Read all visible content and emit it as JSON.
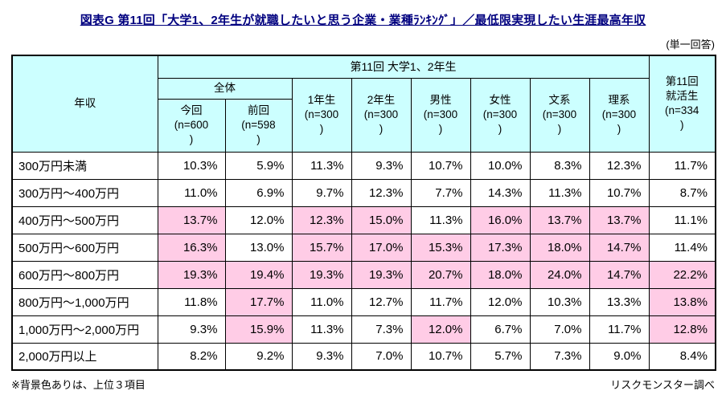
{
  "colors": {
    "header_bg": "#ccffff",
    "highlight_bg": "#ffcce6",
    "title_color": "#00007f",
    "border": "#000000"
  },
  "page": {
    "title": "図表G 第11回「大学1、2年生が就職したいと思う企業・業種ﾗﾝｷﾝｸﾞ」／最低限実現したい生涯最高年収",
    "answer_note": "(単一回答)",
    "footnote": "※背景色ありは、上位３項目",
    "source": "リスクモンスター調べ"
  },
  "header": {
    "nenshu": "年収",
    "group": "第11回  大学1、2年生",
    "zentai": "全体",
    "konkai": "今回\n(n=600\n)",
    "zenkai": "前回\n(n=598\n)",
    "y1": "1年生\n(n=300\n)",
    "y2": "2年生\n(n=300\n)",
    "male": "男性\n(n=300\n)",
    "female": "女性\n(n=300\n)",
    "bunkei": "文系\n(n=300\n)",
    "rikei": "理系\n(n=300\n)",
    "shukatsu": "第11回\n就活生\n(n=334\n)"
  },
  "chart_data": {
    "type": "table",
    "title": "第11回「大学1、2年生が就職したいと思う企業・業種ランキング」／最低限実現したい生涯最高年収",
    "unit": "%",
    "row_header": "年収",
    "column_group": "第11回 大学1、2年生",
    "columns": [
      "今回(n=600)",
      "前回(n=598)",
      "1年生(n=300)",
      "2年生(n=300)",
      "男性(n=300)",
      "女性(n=300)",
      "文系(n=300)",
      "理系(n=300)",
      "第11回就活生(n=334)"
    ],
    "highlight_rule": "背景色ありは、上位3項目",
    "rows": [
      {
        "label": "300万円未満",
        "values": [
          10.3,
          5.9,
          11.3,
          9.3,
          10.7,
          10.0,
          8.3,
          12.3,
          11.7
        ],
        "highlight": [
          0,
          0,
          0,
          0,
          0,
          0,
          0,
          0,
          0
        ]
      },
      {
        "label": "300万円～400万円",
        "values": [
          11.0,
          6.9,
          9.7,
          12.3,
          7.7,
          14.3,
          11.3,
          10.7,
          8.7
        ],
        "highlight": [
          0,
          0,
          0,
          0,
          0,
          0,
          0,
          0,
          0
        ]
      },
      {
        "label": "400万円～500万円",
        "values": [
          13.7,
          12.0,
          12.3,
          15.0,
          11.3,
          16.0,
          13.7,
          13.7,
          11.1
        ],
        "highlight": [
          1,
          0,
          1,
          1,
          0,
          1,
          1,
          1,
          0
        ]
      },
      {
        "label": "500万円～600万円",
        "values": [
          16.3,
          13.0,
          15.7,
          17.0,
          15.3,
          17.3,
          18.0,
          14.7,
          11.4
        ],
        "highlight": [
          1,
          0,
          1,
          1,
          1,
          1,
          1,
          1,
          0
        ]
      },
      {
        "label": "600万円～800万円",
        "values": [
          19.3,
          19.4,
          19.3,
          19.3,
          20.7,
          18.0,
          24.0,
          14.7,
          22.2
        ],
        "highlight": [
          1,
          1,
          1,
          1,
          1,
          1,
          1,
          1,
          1
        ]
      },
      {
        "label": "800万円～1,000万円",
        "values": [
          11.8,
          17.7,
          11.0,
          12.7,
          11.7,
          12.0,
          10.3,
          13.3,
          13.8
        ],
        "highlight": [
          0,
          1,
          0,
          0,
          0,
          0,
          0,
          0,
          1
        ]
      },
      {
        "label": "1,000万円～2,000万円",
        "values": [
          9.3,
          15.9,
          11.3,
          7.3,
          12.0,
          6.7,
          7.0,
          11.7,
          12.8
        ],
        "highlight": [
          0,
          1,
          0,
          0,
          1,
          0,
          0,
          0,
          1
        ]
      },
      {
        "label": "2,000万円以上",
        "values": [
          8.2,
          9.2,
          9.3,
          7.0,
          10.7,
          5.7,
          7.3,
          9.0,
          8.4
        ],
        "highlight": [
          0,
          0,
          0,
          0,
          0,
          0,
          0,
          0,
          0
        ]
      }
    ]
  }
}
